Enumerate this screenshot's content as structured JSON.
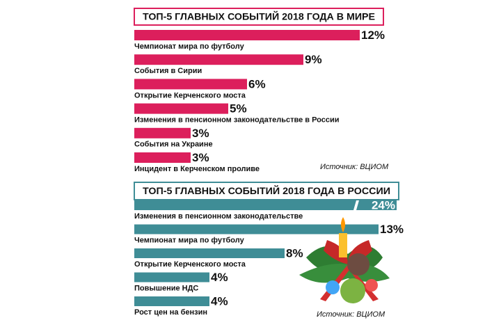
{
  "chart_data": [
    {
      "type": "bar",
      "orientation": "horizontal",
      "title": "ТОП-5 ГЛАВНЫХ СОБЫТИЙ 2018 ГОДА В МИРЕ",
      "categories": [
        "Чемпионат мира по футболу",
        "События в Сирии",
        "Открытие Керченского моста",
        "Изменения в пенсионном законодательстве в России",
        "События на Украине",
        "Инцидент в Керченском проливе"
      ],
      "values": [
        12,
        9,
        6,
        5,
        3,
        3
      ],
      "value_labels": [
        "12%",
        "9%",
        "6%",
        "5%",
        "3%",
        "3%"
      ],
      "color": "#dc1f5c",
      "source": "Источник: ВЦИОМ"
    },
    {
      "type": "bar",
      "orientation": "horizontal",
      "title": "ТОП-5 ГЛАВНЫХ СОБЫТИЙ 2018 ГОДА В РОССИИ",
      "categories": [
        "Изменения в пенсионном законодательстве",
        "Чемпионат мира по футболу",
        "Открытие Керченского моста",
        "Повышение НДС",
        "Рост цен на бензин"
      ],
      "values": [
        24,
        13,
        8,
        4,
        4
      ],
      "value_labels": [
        "24%",
        "13%",
        "8%",
        "4%",
        "4%"
      ],
      "color": "#3f8d96",
      "source": "Источник: ВЦИОМ"
    }
  ]
}
